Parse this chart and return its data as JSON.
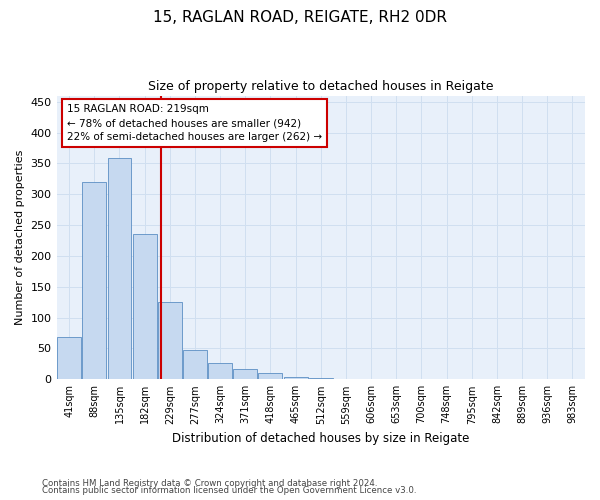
{
  "title": "15, RAGLAN ROAD, REIGATE, RH2 0DR",
  "subtitle": "Size of property relative to detached houses in Reigate",
  "xlabel": "Distribution of detached houses by size in Reigate",
  "ylabel": "Number of detached properties",
  "bar_values": [
    68,
    320,
    358,
    235,
    126,
    48,
    26,
    16,
    11,
    4,
    2,
    1,
    0,
    0,
    0,
    1,
    0,
    0,
    0,
    0,
    1
  ],
  "bin_labels": [
    "41sqm",
    "88sqm",
    "135sqm",
    "182sqm",
    "229sqm",
    "277sqm",
    "324sqm",
    "371sqm",
    "418sqm",
    "465sqm",
    "512sqm",
    "559sqm",
    "606sqm",
    "653sqm",
    "700sqm",
    "748sqm",
    "795sqm",
    "842sqm",
    "889sqm",
    "936sqm",
    "983sqm"
  ],
  "bar_color": "#c6d9f0",
  "bar_edge_color": "#5b8ec4",
  "vline_x_index": 3.65,
  "vline_color": "#cc0000",
  "ylim": [
    0,
    460
  ],
  "yticks": [
    0,
    50,
    100,
    150,
    200,
    250,
    300,
    350,
    400,
    450
  ],
  "annotation_text": "15 RAGLAN ROAD: 219sqm\n← 78% of detached houses are smaller (942)\n22% of semi-detached houses are larger (262) →",
  "annotation_box_color": "#cc0000",
  "footer_line1": "Contains HM Land Registry data © Crown copyright and database right 2024.",
  "footer_line2": "Contains public sector information licensed under the Open Government Licence v3.0.",
  "grid_color": "#d0dff0",
  "background_color": "#e8f0fa"
}
